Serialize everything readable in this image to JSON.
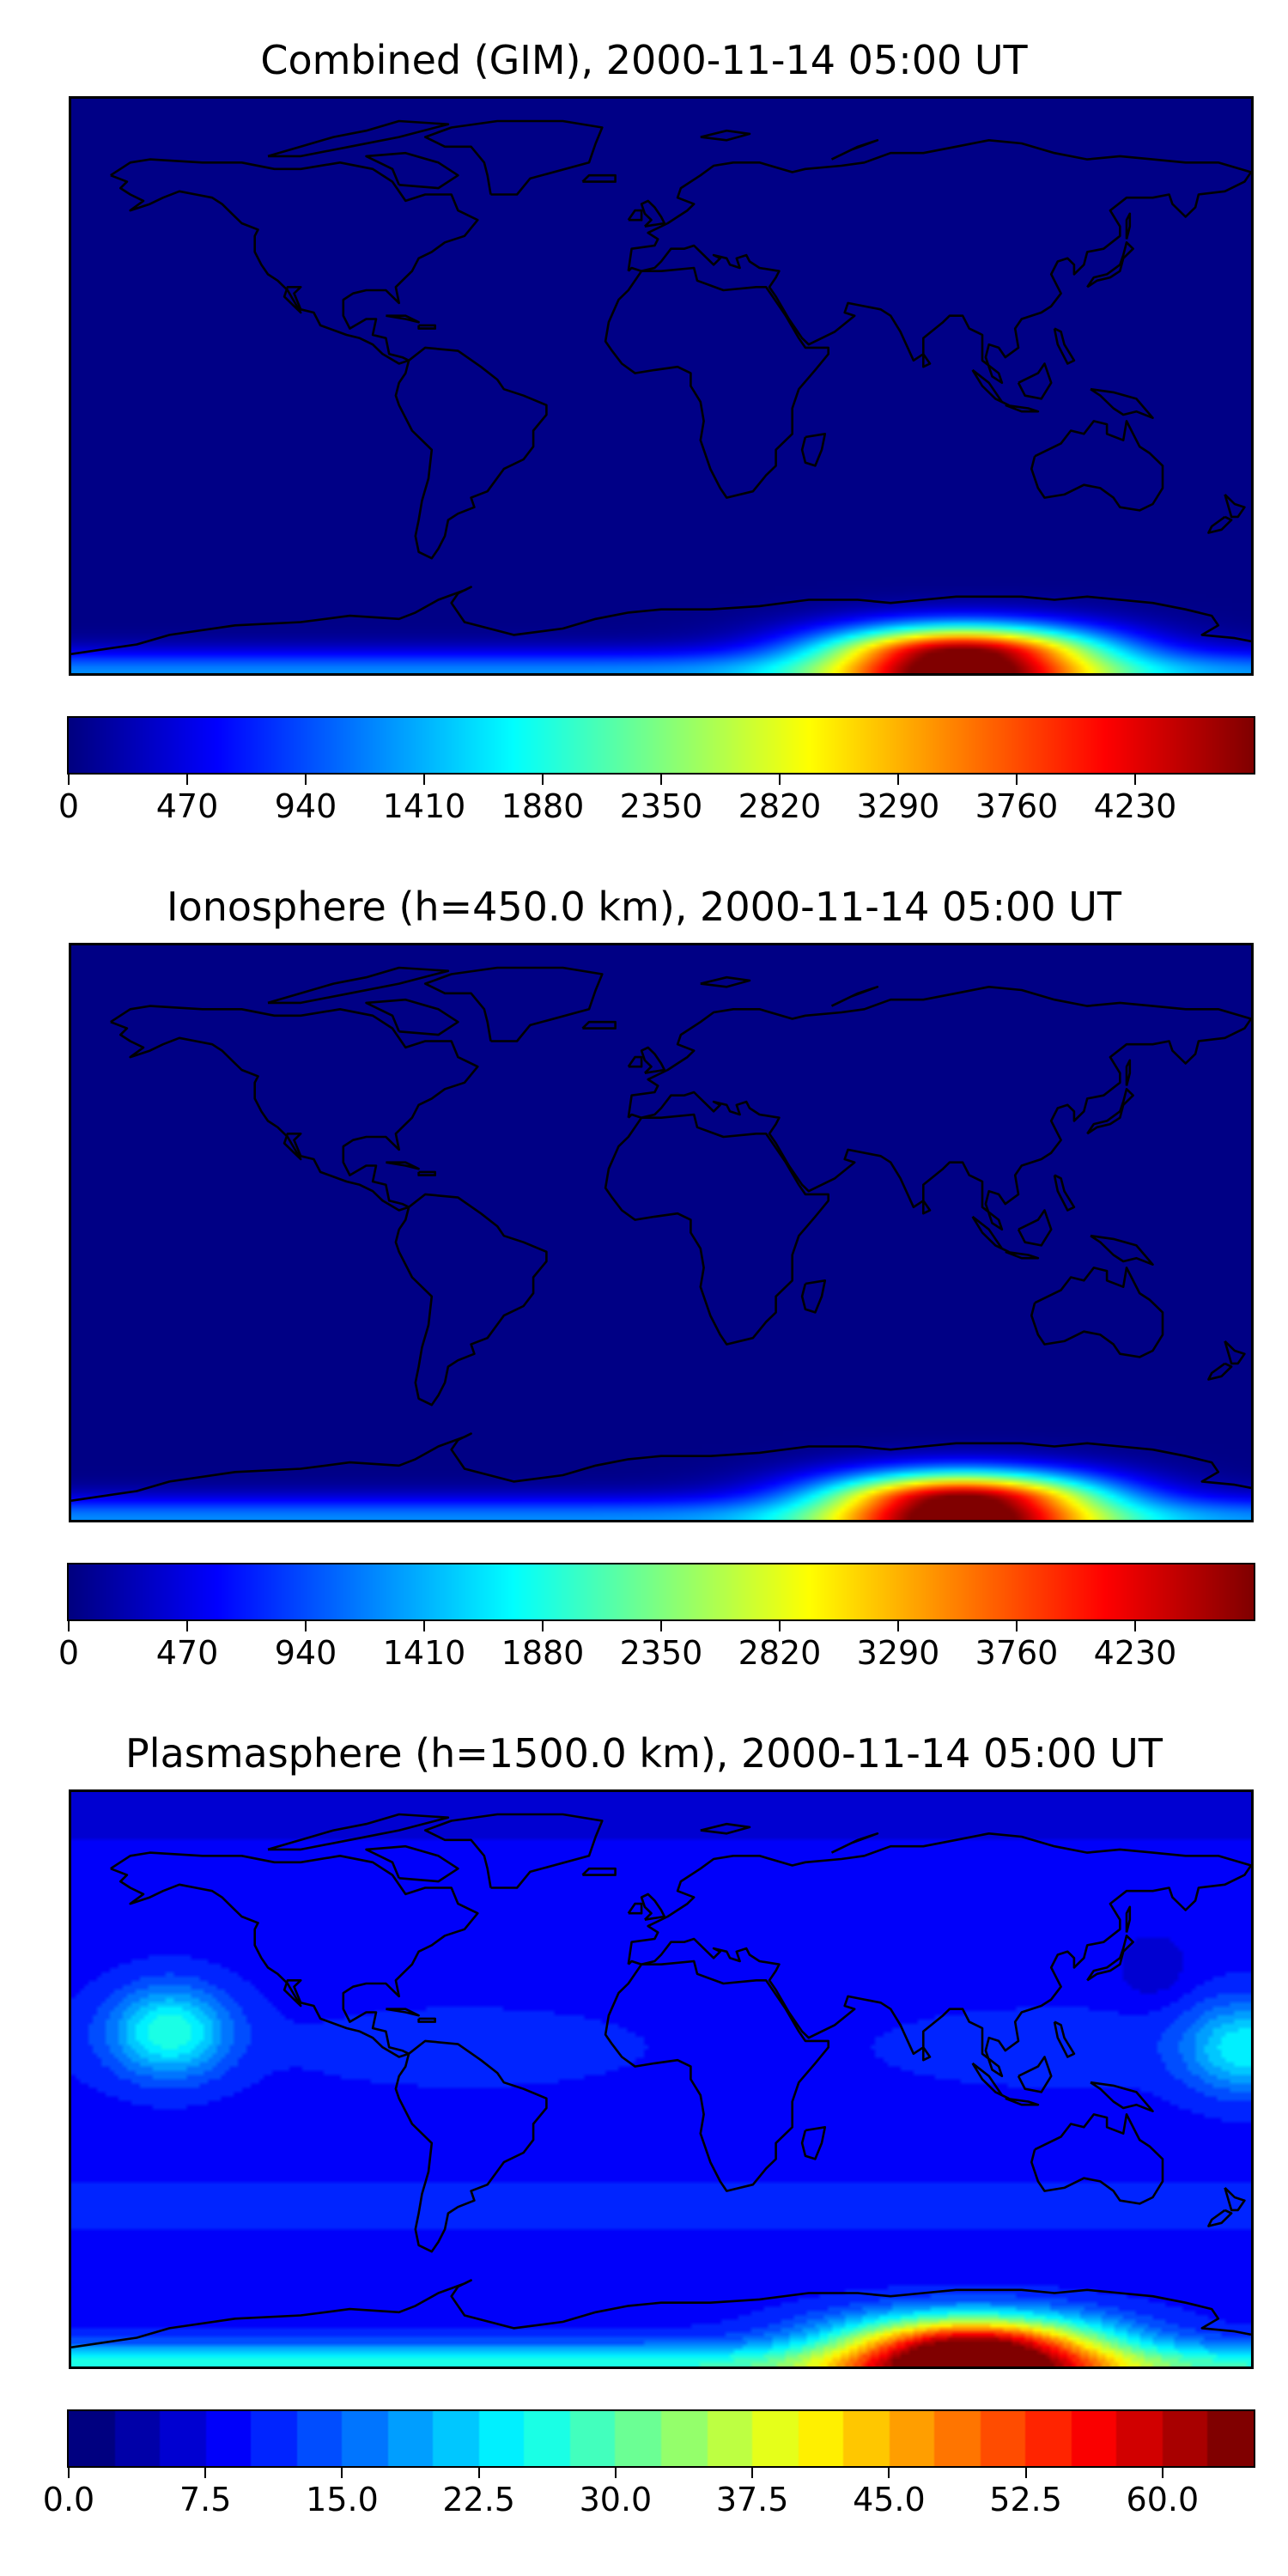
{
  "chart_data": [
    {
      "type": "heatmap",
      "title": "Combined (GIM), 2000-11-14 05:00 UT",
      "colormap": "jet",
      "colorbar": {
        "min": 0,
        "max": 4700,
        "ticks": [
          "0",
          "470",
          "940",
          "1410",
          "1880",
          "2350",
          "2820",
          "3290",
          "3760",
          "4230"
        ],
        "tick_values": [
          0,
          470,
          940,
          1410,
          1880,
          2350,
          2820,
          3290,
          3760,
          4230
        ],
        "continuous": true
      },
      "background_value": 30,
      "peak": {
        "lon": 92,
        "lat": -84,
        "value": 4650
      },
      "features": [
        "coastlines",
        "high values along southern edge, peak near Antarctica south of Australia"
      ]
    },
    {
      "type": "heatmap",
      "title": "Ionosphere  (h=450.0 km), 2000-11-14 05:00 UT",
      "colormap": "jet",
      "colorbar": {
        "min": 0,
        "max": 4700,
        "ticks": [
          "0",
          "470",
          "940",
          "1410",
          "1880",
          "2350",
          "2820",
          "3290",
          "3760",
          "4230"
        ],
        "tick_values": [
          0,
          470,
          940,
          1410,
          1880,
          2350,
          2820,
          3290,
          3760,
          4230
        ],
        "continuous": true
      },
      "background_value": 25,
      "peak": {
        "lon": 92,
        "lat": -84,
        "value": 4650
      },
      "features": [
        "coastlines",
        "high values along southern edge, peak near Antarctica south of Australia"
      ]
    },
    {
      "type": "heatmap",
      "title": "Plasmasphere (h=1500.0 km), 2000-11-14 05:00 UT",
      "colormap": "jet",
      "colorbar": {
        "min": 0,
        "max": 65,
        "levels": 26,
        "ticks": [
          "0.0",
          "7.5",
          "15.0",
          "22.5",
          "30.0",
          "37.5",
          "45.0",
          "52.5",
          "60.0"
        ],
        "tick_values": [
          0,
          7.5,
          15,
          22.5,
          30,
          37.5,
          45,
          52.5,
          60
        ],
        "continuous": false
      },
      "background_value": 9,
      "peak": {
        "lon": 95,
        "lat": -84,
        "value": 62
      },
      "secondary_maxima": [
        {
          "lon": -150,
          "lat": 15,
          "value": 27
        },
        {
          "lon": 178,
          "lat": 10,
          "value": 24
        }
      ],
      "minima": [
        {
          "lon": 150,
          "lat": 35,
          "value": 5
        }
      ],
      "features": [
        "coastlines",
        "filled contours"
      ]
    }
  ]
}
